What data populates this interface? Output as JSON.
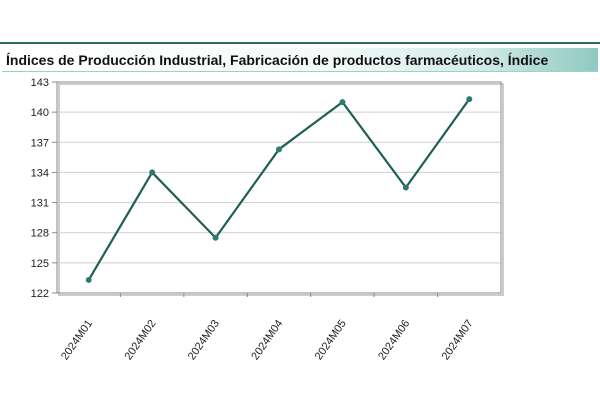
{
  "colors": {
    "line": "#1f5f55",
    "marker": "#2e7a6f",
    "accent": "#2b6b62",
    "grid": "#cfcfcf",
    "plot_border": "#8a8a8a"
  },
  "chart_data": {
    "type": "line",
    "title": "Índices de Producción Industrial, Fabricación de productos farmacéuticos, Índice",
    "xlabel": "",
    "ylabel": "",
    "categories": [
      "2024M01",
      "2024M02",
      "2024M03",
      "2024M04",
      "2024M05",
      "2024M06",
      "2024M07"
    ],
    "series": [
      {
        "values": [
          123.3,
          134.0,
          127.5,
          136.3,
          141.0,
          132.5,
          141.3
        ]
      }
    ],
    "yticks": [
      "122",
      "125",
      "128",
      "131",
      "134",
      "137",
      "140",
      "143"
    ],
    "ylim": [
      122,
      143
    ],
    "grid": true,
    "legend": "none"
  }
}
